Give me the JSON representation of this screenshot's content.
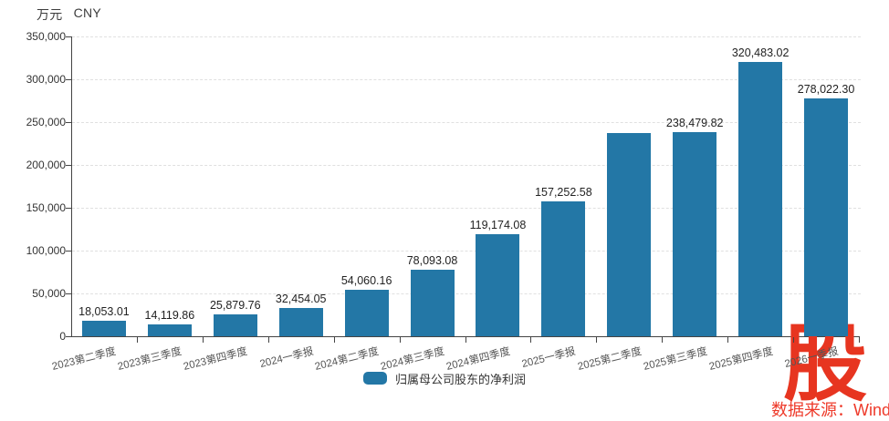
{
  "header": {
    "unit": "万元",
    "currency": "CNY"
  },
  "legend": {
    "label": "归属母公司股东的净利润",
    "swatch_color": "#2377a6"
  },
  "watermark": {
    "logo_glyph": "股",
    "source_text": "数据来源：Wind",
    "logo_color": "#e73520",
    "text_color": "#ee3a2a"
  },
  "chart_data": {
    "type": "bar",
    "title": "",
    "unit_label": "万元 CNY",
    "series_name": "归属母公司股东的净利润",
    "categories": [
      "2023第二季度",
      "2023第三季度",
      "2023第四季度",
      "2024一季报",
      "2024第二季度",
      "2024第三季度",
      "2024第四季度",
      "2025一季报",
      "2025第二季度",
      "2025第三季度",
      "2025第四季度",
      "2026一季报"
    ],
    "values": [
      18053.01,
      14119.86,
      25879.76,
      32454.05,
      54060.16,
      78093.08,
      119174.08,
      157252.58,
      237500,
      238479.82,
      320483.02,
      278022.3
    ],
    "data_labels": [
      "18,053.01",
      "14,119.86",
      "25,879.76",
      "32,454.05",
      "54,060.16",
      "78,093.08",
      "119,174.08",
      "157,252.58",
      "",
      "238,479.82",
      "320,483.02",
      "278,022.30"
    ],
    "y_ticks": [
      {
        "value": 0,
        "label": "0"
      },
      {
        "value": 50000,
        "label": "50,000"
      },
      {
        "value": 100000,
        "label": "100,000"
      },
      {
        "value": 150000,
        "label": "150,000"
      },
      {
        "value": 200000,
        "label": "200,000"
      },
      {
        "value": 250000,
        "label": "250,000"
      },
      {
        "value": 300000,
        "label": "300,000"
      },
      {
        "value": 350000,
        "label": "350,000"
      }
    ],
    "ylim": [
      0,
      350000
    ],
    "bar_color": "#2377a6",
    "grid": "horizontal-dashed",
    "legend_position": "bottom"
  }
}
